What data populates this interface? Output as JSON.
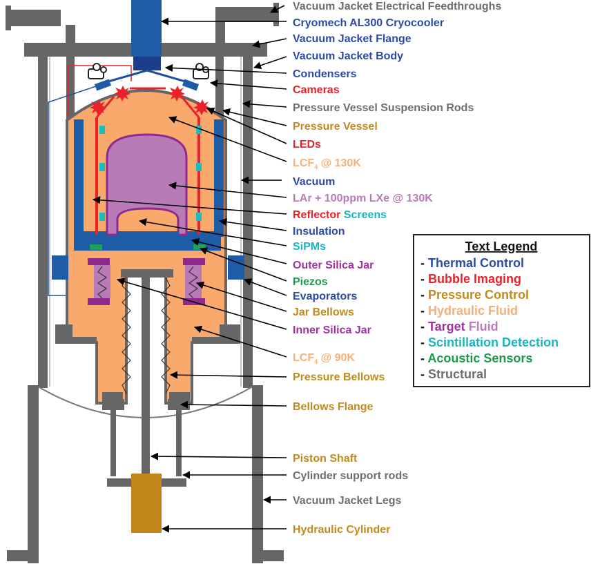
{
  "colors": {
    "structural": "#666666",
    "thermal": "#1c4fa0",
    "imaging": "#e8222a",
    "pressure": "#c0861a",
    "hydraulic": "#f8a96b",
    "target": "#b97ab8",
    "target_dark": "#8e2a8e",
    "scint": "#1bbcbc",
    "acoustic": "#17a35a",
    "jacket_blue": "#1f5ca8",
    "label_gray": "#6e6e6e",
    "label_blue": "#2c4aa6",
    "label_red": "#e8222a",
    "label_gold": "#c08a1c",
    "label_peach": "#f5b07a",
    "label_purple": "#a0329e",
    "label_cyan": "#17b6c0",
    "label_green": "#1a9a4a"
  },
  "labels": {
    "feedthroughs": "Vacuum Jacket Electrical Feedthroughs",
    "cryocooler": "Cryomech AL300 Cryocooler",
    "jacket_flange": "Vacuum Jacket Flange",
    "jacket_body": "Vacuum Jacket Body",
    "condensers": "Condensers",
    "cameras": "Cameras",
    "suspension_rods": "Pressure Vessel Suspension Rods",
    "pressure_vessel": "Pressure Vessel",
    "leds": "LEDs",
    "lcf4_130_main": "LCF",
    "lcf4_130_sub": "4",
    "lcf4_130_rest": " @ 130K",
    "vacuum": "Vacuum",
    "lar_lxe": "LAr + 100ppm LXe @ 130K",
    "reflector": "Reflector",
    "screens": " Screens",
    "insulation": "Insulation",
    "sipms": "SiPMs",
    "outer_jar": "Outer Silica Jar",
    "piezos": "Piezos",
    "evaporators": "Evaporators",
    "jar_bellows": "Jar Bellows",
    "inner_jar": "Inner Silica Jar",
    "lcf4_90_main": "LCF",
    "lcf4_90_sub": "4",
    "lcf4_90_rest": " @ 90K",
    "pressure_bellows": "Pressure Bellows",
    "bellows_flange": "Bellows Flange",
    "piston_shaft": "Piston Shaft",
    "cylinder_rods": "Cylinder support rods",
    "jacket_legs": "Vacuum Jacket Legs",
    "hydraulic_cylinder": "Hydraulic Cylinder"
  },
  "legend": {
    "title": "Text Legend",
    "items": [
      {
        "dash": "- ",
        "text": "Thermal Control"
      },
      {
        "dash": "- ",
        "text": "Bubble Imaging"
      },
      {
        "dash": "- ",
        "text": "Pressure Control"
      },
      {
        "dash": "- ",
        "text": "Hydraulic Fluid"
      },
      {
        "dash": "- ",
        "text": "Target",
        "text2": " Fluid"
      },
      {
        "dash": "- ",
        "text": "Scintillation Detection"
      },
      {
        "dash": "- ",
        "text": "Acoustic Sensors"
      },
      {
        "dash": "- ",
        "text": "Structural"
      }
    ]
  }
}
